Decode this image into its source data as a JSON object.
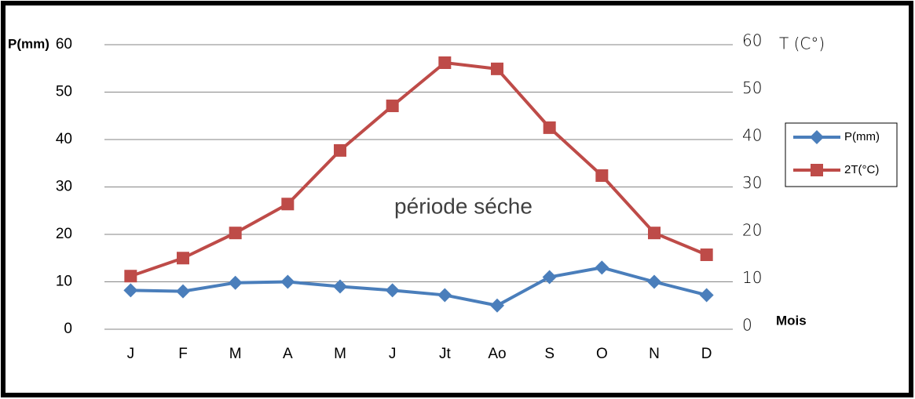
{
  "chart_data": {
    "type": "line",
    "y_label": "P(mm)",
    "y2_label": "T (C°)",
    "x_label": "Mois",
    "annotation": "période séche",
    "categories": [
      "J",
      "F",
      "M",
      "A",
      "M",
      "J",
      "Jt",
      "Ao",
      "S",
      "O",
      "N",
      "D"
    ],
    "series": [
      {
        "name": "P(mm)",
        "color": "#4a7ebb",
        "marker": "diamond",
        "values": [
          8.2,
          8,
          9.8,
          10,
          9,
          8.2,
          7.2,
          5,
          11,
          13,
          10,
          7.2
        ]
      },
      {
        "name": "2T(°C)",
        "color": "#be4b48",
        "marker": "square",
        "values": [
          11.2,
          15,
          20.3,
          26.4,
          37.7,
          47.1,
          56.2,
          54.9,
          42.5,
          32.4,
          20.3,
          15.7
        ]
      }
    ],
    "ylim": [
      0,
      60
    ],
    "yticks": [
      0,
      10,
      20,
      30,
      40,
      50,
      60
    ],
    "y2lim": [
      0,
      60
    ],
    "y2ticks": [
      0,
      10,
      20,
      30,
      40,
      50,
      60
    ],
    "grid": true,
    "legend": "right"
  }
}
